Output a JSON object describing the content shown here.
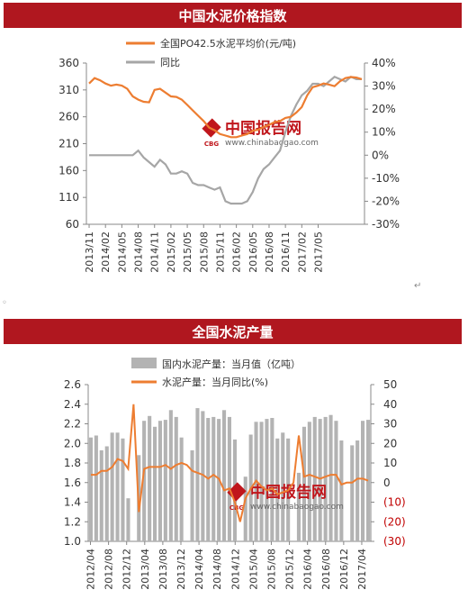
{
  "titles": {
    "chart1": "中国水泥价格指数",
    "chart2": "全国水泥产量"
  },
  "watermark": {
    "cn": "中国报告网",
    "url": "www.chinabaogao.com",
    "logo": "CBG"
  },
  "colors": {
    "title_bg": "#b0171f",
    "orange": "#ed7d31",
    "gray_line": "#a6a6a6",
    "bar_gray": "#b3b3b3",
    "neg_red": "#c00000",
    "wm_red": "#c0161c"
  },
  "chart_data": [
    {
      "type": "line",
      "title": "中国水泥价格指数",
      "x_ticks": [
        "2013/11",
        "2014/02",
        "2014/05",
        "2014/08",
        "2014/11",
        "2015/02",
        "2015/05",
        "2015/08",
        "2015/11",
        "2016/02",
        "2016/05",
        "2016/08",
        "2016/11",
        "2017/02",
        "2017/05"
      ],
      "y_left": {
        "ticks": [
          "360",
          "310",
          "260",
          "210",
          "160",
          "110",
          "60"
        ],
        "range": [
          60,
          360
        ]
      },
      "y_right": {
        "ticks": [
          "40%",
          "30%",
          "20%",
          "10%",
          "0%",
          "-10%",
          "-20%",
          "-30%"
        ],
        "range": [
          -30,
          40
        ]
      },
      "series": [
        {
          "name": "全国PO42.5水泥平均价(元/吨)",
          "axis": "left",
          "values": [
            322,
            332,
            328,
            322,
            318,
            320,
            318,
            312,
            298,
            292,
            288,
            287,
            310,
            312,
            305,
            298,
            297,
            292,
            282,
            272,
            262,
            252,
            240,
            235,
            228,
            225,
            222,
            222,
            225,
            228,
            234,
            236,
            241,
            245,
            250,
            252,
            258,
            260,
            268,
            278,
            300,
            315,
            318,
            322,
            320,
            317,
            326,
            332,
            334,
            333,
            330
          ]
        },
        {
          "name": "同比",
          "axis": "right",
          "values": [
            0,
            0,
            0,
            0,
            0,
            0,
            0,
            0,
            0,
            2,
            -1,
            -3,
            -5,
            -2,
            -4,
            -8,
            -8,
            -7,
            -8,
            -12,
            -13,
            -13,
            -14,
            -15,
            -14,
            -20,
            -21,
            -21,
            -21,
            -20,
            -16,
            -10,
            -6,
            -4,
            -1,
            2,
            10,
            17,
            22,
            26,
            28,
            31,
            31,
            30,
            32,
            34,
            33,
            32,
            34,
            33,
            33
          ]
        }
      ]
    },
    {
      "type": "bar",
      "title": "全国水泥产量",
      "x_ticks": [
        "2012/04",
        "2012/08",
        "2012/12",
        "2013/04",
        "2013/08",
        "2013/12",
        "2014/04",
        "2014/08",
        "2014/12",
        "2015/04",
        "2015/08",
        "2015/12",
        "2016/04",
        "2016/08",
        "2016/12",
        "2017/04"
      ],
      "y_left": {
        "ticks": [
          "2.6",
          "2.4",
          "2.2",
          "2.0",
          "1.8",
          "1.6",
          "1.4",
          "1.2",
          "1.0"
        ],
        "range": [
          1.0,
          2.6
        ]
      },
      "y_right": {
        "ticks": [
          "50",
          "40",
          "30",
          "20",
          "10",
          "0",
          "(10)",
          "(20)",
          "(30)"
        ],
        "range": [
          -30,
          50
        ]
      },
      "series": [
        {
          "name": "国内水泥产量：当月值（亿吨）",
          "axis": "left",
          "type": "bar",
          "values": [
            2.06,
            2.08,
            1.93,
            1.97,
            2.11,
            2.11,
            2.05,
            1.44,
            null,
            1.88,
            2.23,
            2.28,
            2.17,
            2.23,
            2.24,
            2.34,
            2.27,
            2.06,
            null,
            1.93,
            2.36,
            2.33,
            2.26,
            2.27,
            2.25,
            2.34,
            2.27,
            2.04,
            null,
            1.66,
            2.09,
            2.22,
            2.22,
            2.25,
            2.26,
            2.05,
            2.11,
            2.05,
            null,
            1.7,
            2.17,
            2.22,
            2.27,
            2.25,
            2.27,
            2.29,
            2.23,
            2.03,
            null,
            1.98,
            2.03,
            2.23,
            2.24
          ]
        },
        {
          "name": "水泥产量：当月同比(%)",
          "axis": "right",
          "type": "line",
          "values": [
            4,
            4,
            6,
            6,
            8,
            12,
            11,
            7,
            40,
            -15,
            7,
            8,
            8,
            8,
            9,
            7,
            9,
            10,
            9,
            6,
            5,
            4,
            2,
            4,
            2,
            -4,
            -3,
            -10,
            -20,
            -8,
            -3,
            1,
            -2,
            -4,
            -3,
            -6,
            -5,
            -4,
            0,
            24,
            3,
            4,
            3,
            2,
            3,
            4,
            4,
            -1,
            0,
            0,
            2,
            2,
            1
          ]
        }
      ]
    }
  ]
}
